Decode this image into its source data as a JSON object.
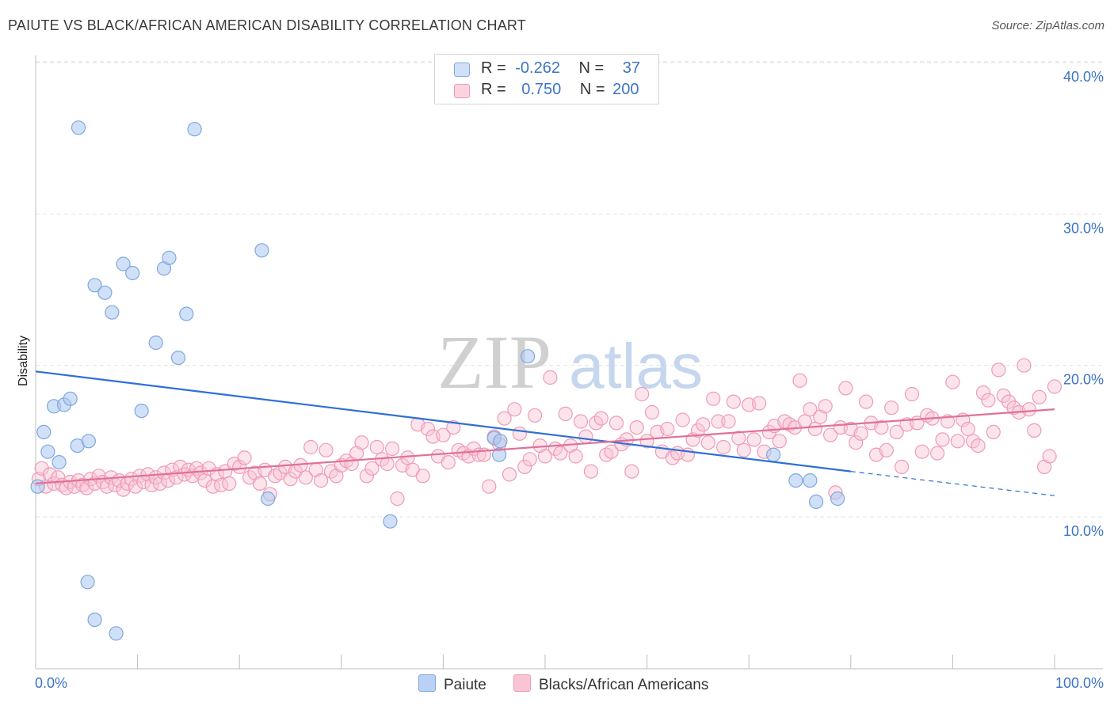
{
  "title": "PAIUTE VS BLACK/AFRICAN AMERICAN DISABILITY CORRELATION CHART",
  "source": "Source: ZipAtlas.com",
  "watermark": {
    "zip": "ZIP",
    "atlas": "atlas"
  },
  "legend": {
    "rows": [
      {
        "r_label": "R =",
        "r_value": "-0.262",
        "n_label": "N =",
        "n_value": "37",
        "color": "#a9c8f0"
      },
      {
        "r_label": "R =",
        "r_value": "0.750",
        "n_label": "N =",
        "n_value": "200",
        "color": "#f6b8ca"
      }
    ]
  },
  "bottom_legend": [
    {
      "label": "Paiute",
      "color": "#b8d1f4"
    },
    {
      "label": "Blacks/African Americans",
      "color": "#f9c4d4"
    }
  ],
  "chart_data": {
    "type": "scatter",
    "title": "PAIUTE VS BLACK/AFRICAN AMERICAN DISABILITY CORRELATION CHART",
    "xlabel": "",
    "ylabel": "Disability",
    "x_tick_labels": [
      "0.0%",
      "100.0%"
    ],
    "y_tick_labels": [
      "10.0%",
      "20.0%",
      "30.0%",
      "40.0%"
    ],
    "y_ticks": [
      10,
      20,
      30,
      40
    ],
    "xlim": [
      0,
      100
    ],
    "ylim": [
      0,
      42
    ],
    "grid": true,
    "legend_position": "top-center",
    "series": [
      {
        "name": "Paiute",
        "color": "#a9c8f0",
        "stroke": "#7fa8de",
        "points": [
          [
            0.2,
            12.0
          ],
          [
            0.8,
            15.6
          ],
          [
            1.2,
            14.3
          ],
          [
            1.8,
            17.3
          ],
          [
            2.3,
            13.6
          ],
          [
            2.8,
            17.4
          ],
          [
            3.4,
            17.8
          ],
          [
            4.1,
            14.7
          ],
          [
            4.2,
            35.7
          ],
          [
            5.2,
            15.0
          ],
          [
            5.8,
            25.3
          ],
          [
            6.8,
            24.8
          ],
          [
            7.5,
            23.5
          ],
          [
            8.6,
            26.7
          ],
          [
            9.5,
            26.1
          ],
          [
            10.4,
            17.0
          ],
          [
            11.8,
            21.5
          ],
          [
            12.6,
            26.4
          ],
          [
            13.1,
            27.1
          ],
          [
            14.0,
            20.5
          ],
          [
            14.8,
            23.4
          ],
          [
            15.6,
            35.6
          ],
          [
            22.2,
            27.6
          ],
          [
            22.8,
            11.2
          ],
          [
            5.1,
            5.7
          ],
          [
            5.8,
            3.2
          ],
          [
            7.9,
            2.3
          ],
          [
            34.8,
            9.7
          ],
          [
            45.0,
            15.2
          ],
          [
            45.6,
            15.0
          ],
          [
            45.5,
            14.1
          ],
          [
            48.3,
            20.6
          ],
          [
            72.4,
            14.1
          ],
          [
            74.6,
            12.4
          ],
          [
            76.0,
            12.4
          ],
          [
            76.6,
            11.0
          ],
          [
            78.7,
            11.2
          ]
        ]
      },
      {
        "name": "Blacks/African Americans",
        "color": "#f9c4d4",
        "stroke": "#ef9bb5",
        "points": [
          [
            0.3,
            12.5
          ],
          [
            0.6,
            13.2
          ],
          [
            1.0,
            12.0
          ],
          [
            1.4,
            12.8
          ],
          [
            1.8,
            12.2
          ],
          [
            2.2,
            12.6
          ],
          [
            2.6,
            12.1
          ],
          [
            3.0,
            11.9
          ],
          [
            3.4,
            12.3
          ],
          [
            3.8,
            12.0
          ],
          [
            4.2,
            12.4
          ],
          [
            4.6,
            12.1
          ],
          [
            5.0,
            11.9
          ],
          [
            5.4,
            12.5
          ],
          [
            5.8,
            12.2
          ],
          [
            6.2,
            12.7
          ],
          [
            6.6,
            12.3
          ],
          [
            7.0,
            12.0
          ],
          [
            7.4,
            12.6
          ],
          [
            7.8,
            12.1
          ],
          [
            8.2,
            12.4
          ],
          [
            8.6,
            11.8
          ],
          [
            9.0,
            12.2
          ],
          [
            9.4,
            12.5
          ],
          [
            9.8,
            12.0
          ],
          [
            10.2,
            12.7
          ],
          [
            10.6,
            12.3
          ],
          [
            11.0,
            12.8
          ],
          [
            11.4,
            12.1
          ],
          [
            11.8,
            12.6
          ],
          [
            12.2,
            12.2
          ],
          [
            12.6,
            12.9
          ],
          [
            13.0,
            12.4
          ],
          [
            13.4,
            13.1
          ],
          [
            13.8,
            12.6
          ],
          [
            14.2,
            13.3
          ],
          [
            14.6,
            12.8
          ],
          [
            15.0,
            13.1
          ],
          [
            15.4,
            12.7
          ],
          [
            15.8,
            13.2
          ],
          [
            16.2,
            12.9
          ],
          [
            16.6,
            12.4
          ],
          [
            17.0,
            13.2
          ],
          [
            17.4,
            12.0
          ],
          [
            17.8,
            12.8
          ],
          [
            18.2,
            12.1
          ],
          [
            18.6,
            13.0
          ],
          [
            19.0,
            12.2
          ],
          [
            19.5,
            13.5
          ],
          [
            20.0,
            13.3
          ],
          [
            20.5,
            13.9
          ],
          [
            21.0,
            12.6
          ],
          [
            21.5,
            12.9
          ],
          [
            22.0,
            12.2
          ],
          [
            22.5,
            13.1
          ],
          [
            23.0,
            11.5
          ],
          [
            23.5,
            12.7
          ],
          [
            24.0,
            12.9
          ],
          [
            24.5,
            13.3
          ],
          [
            25.0,
            12.5
          ],
          [
            25.5,
            13.0
          ],
          [
            26.0,
            13.4
          ],
          [
            26.5,
            12.6
          ],
          [
            27.0,
            14.6
          ],
          [
            27.5,
            13.1
          ],
          [
            28.0,
            12.4
          ],
          [
            28.5,
            14.4
          ],
          [
            29.0,
            13.0
          ],
          [
            29.5,
            12.7
          ],
          [
            30.0,
            13.4
          ],
          [
            30.5,
            13.7
          ],
          [
            31.0,
            13.5
          ],
          [
            31.5,
            14.2
          ],
          [
            32.0,
            14.9
          ],
          [
            32.5,
            12.7
          ],
          [
            33.0,
            13.2
          ],
          [
            33.5,
            14.6
          ],
          [
            34.0,
            13.8
          ],
          [
            34.5,
            13.5
          ],
          [
            35.0,
            14.5
          ],
          [
            35.5,
            11.2
          ],
          [
            36.0,
            13.4
          ],
          [
            36.5,
            13.9
          ],
          [
            37.0,
            13.1
          ],
          [
            37.5,
            16.1
          ],
          [
            38.0,
            12.7
          ],
          [
            38.5,
            15.8
          ],
          [
            39.0,
            15.3
          ],
          [
            39.5,
            14.0
          ],
          [
            40.0,
            15.4
          ],
          [
            40.5,
            13.6
          ],
          [
            41.0,
            15.9
          ],
          [
            41.5,
            14.4
          ],
          [
            42.0,
            14.2
          ],
          [
            42.5,
            14.0
          ],
          [
            43.0,
            14.5
          ],
          [
            43.5,
            14.1
          ],
          [
            44.0,
            14.1
          ],
          [
            44.5,
            12.0
          ],
          [
            45.0,
            15.3
          ],
          [
            45.5,
            14.8
          ],
          [
            46.0,
            16.5
          ],
          [
            46.5,
            12.8
          ],
          [
            47.0,
            17.1
          ],
          [
            47.5,
            15.5
          ],
          [
            48.0,
            13.3
          ],
          [
            48.5,
            13.8
          ],
          [
            49.0,
            16.7
          ],
          [
            49.5,
            14.7
          ],
          [
            50.0,
            14.0
          ],
          [
            50.5,
            19.2
          ],
          [
            51.0,
            14.5
          ],
          [
            51.5,
            14.2
          ],
          [
            52.0,
            16.8
          ],
          [
            52.5,
            14.7
          ],
          [
            53.0,
            14.0
          ],
          [
            53.5,
            16.3
          ],
          [
            54.0,
            15.3
          ],
          [
            54.5,
            13.0
          ],
          [
            55.0,
            16.2
          ],
          [
            55.5,
            16.5
          ],
          [
            56.0,
            14.1
          ],
          [
            56.5,
            14.3
          ],
          [
            57.0,
            16.2
          ],
          [
            57.5,
            14.8
          ],
          [
            58.0,
            15.1
          ],
          [
            58.5,
            13.0
          ],
          [
            59.0,
            15.9
          ],
          [
            59.5,
            18.1
          ],
          [
            60.0,
            15.0
          ],
          [
            60.5,
            16.9
          ],
          [
            61.0,
            15.6
          ],
          [
            61.5,
            14.3
          ],
          [
            62.0,
            15.8
          ],
          [
            62.5,
            13.9
          ],
          [
            63.0,
            14.2
          ],
          [
            63.5,
            16.4
          ],
          [
            64.0,
            14.1
          ],
          [
            64.5,
            15.1
          ],
          [
            65.0,
            15.7
          ],
          [
            65.5,
            16.1
          ],
          [
            66.0,
            14.9
          ],
          [
            66.5,
            17.8
          ],
          [
            67.0,
            16.3
          ],
          [
            67.5,
            14.6
          ],
          [
            68.0,
            16.3
          ],
          [
            68.5,
            17.6
          ],
          [
            69.0,
            15.2
          ],
          [
            69.5,
            14.4
          ],
          [
            70.0,
            17.4
          ],
          [
            70.5,
            15.1
          ],
          [
            71.0,
            17.5
          ],
          [
            71.5,
            14.3
          ],
          [
            72.0,
            15.6
          ],
          [
            72.5,
            16.0
          ],
          [
            73.0,
            15.0
          ],
          [
            73.5,
            16.3
          ],
          [
            74.0,
            16.1
          ],
          [
            74.5,
            15.9
          ],
          [
            75.0,
            19.0
          ],
          [
            75.5,
            16.3
          ],
          [
            76.0,
            17.1
          ],
          [
            76.5,
            15.8
          ],
          [
            77.0,
            16.6
          ],
          [
            77.5,
            17.3
          ],
          [
            78.0,
            15.4
          ],
          [
            78.5,
            11.6
          ],
          [
            79.0,
            15.9
          ],
          [
            79.5,
            18.5
          ],
          [
            80.0,
            15.8
          ],
          [
            80.5,
            14.9
          ],
          [
            81.0,
            15.5
          ],
          [
            81.5,
            17.6
          ],
          [
            82.0,
            16.2
          ],
          [
            82.5,
            14.1
          ],
          [
            83.0,
            15.9
          ],
          [
            83.5,
            14.4
          ],
          [
            84.0,
            17.2
          ],
          [
            84.5,
            15.6
          ],
          [
            85.0,
            13.3
          ],
          [
            85.5,
            16.1
          ],
          [
            86.0,
            18.1
          ],
          [
            86.5,
            16.2
          ],
          [
            87.0,
            14.3
          ],
          [
            87.5,
            16.7
          ],
          [
            88.0,
            16.5
          ],
          [
            88.5,
            14.2
          ],
          [
            89.0,
            15.1
          ],
          [
            89.5,
            16.3
          ],
          [
            90.0,
            18.9
          ],
          [
            90.5,
            15.0
          ],
          [
            91.0,
            16.4
          ],
          [
            91.5,
            15.8
          ],
          [
            92.0,
            15.0
          ],
          [
            92.5,
            14.7
          ],
          [
            93.0,
            18.2
          ],
          [
            93.5,
            17.7
          ],
          [
            94.0,
            15.6
          ],
          [
            94.5,
            19.7
          ],
          [
            95.0,
            18.0
          ],
          [
            95.5,
            17.6
          ],
          [
            96.0,
            17.2
          ],
          [
            96.5,
            16.9
          ],
          [
            97.0,
            20.0
          ],
          [
            97.5,
            17.1
          ],
          [
            98.0,
            15.7
          ],
          [
            98.5,
            17.9
          ],
          [
            99.0,
            13.3
          ],
          [
            99.5,
            14.0
          ],
          [
            100.0,
            18.6
          ]
        ]
      }
    ],
    "trend_lines": [
      {
        "series": "Paiute",
        "x0": 0,
        "y0": 19.6,
        "x1": 80,
        "y1": 13.0,
        "dashed_to_x": 100,
        "dashed_to_y": 11.4,
        "color": "#2f6fd6"
      },
      {
        "series": "Blacks/African Americans",
        "x0": 0,
        "y0": 12.2,
        "x1": 100,
        "y1": 17.1,
        "color": "#e0709a"
      }
    ]
  }
}
